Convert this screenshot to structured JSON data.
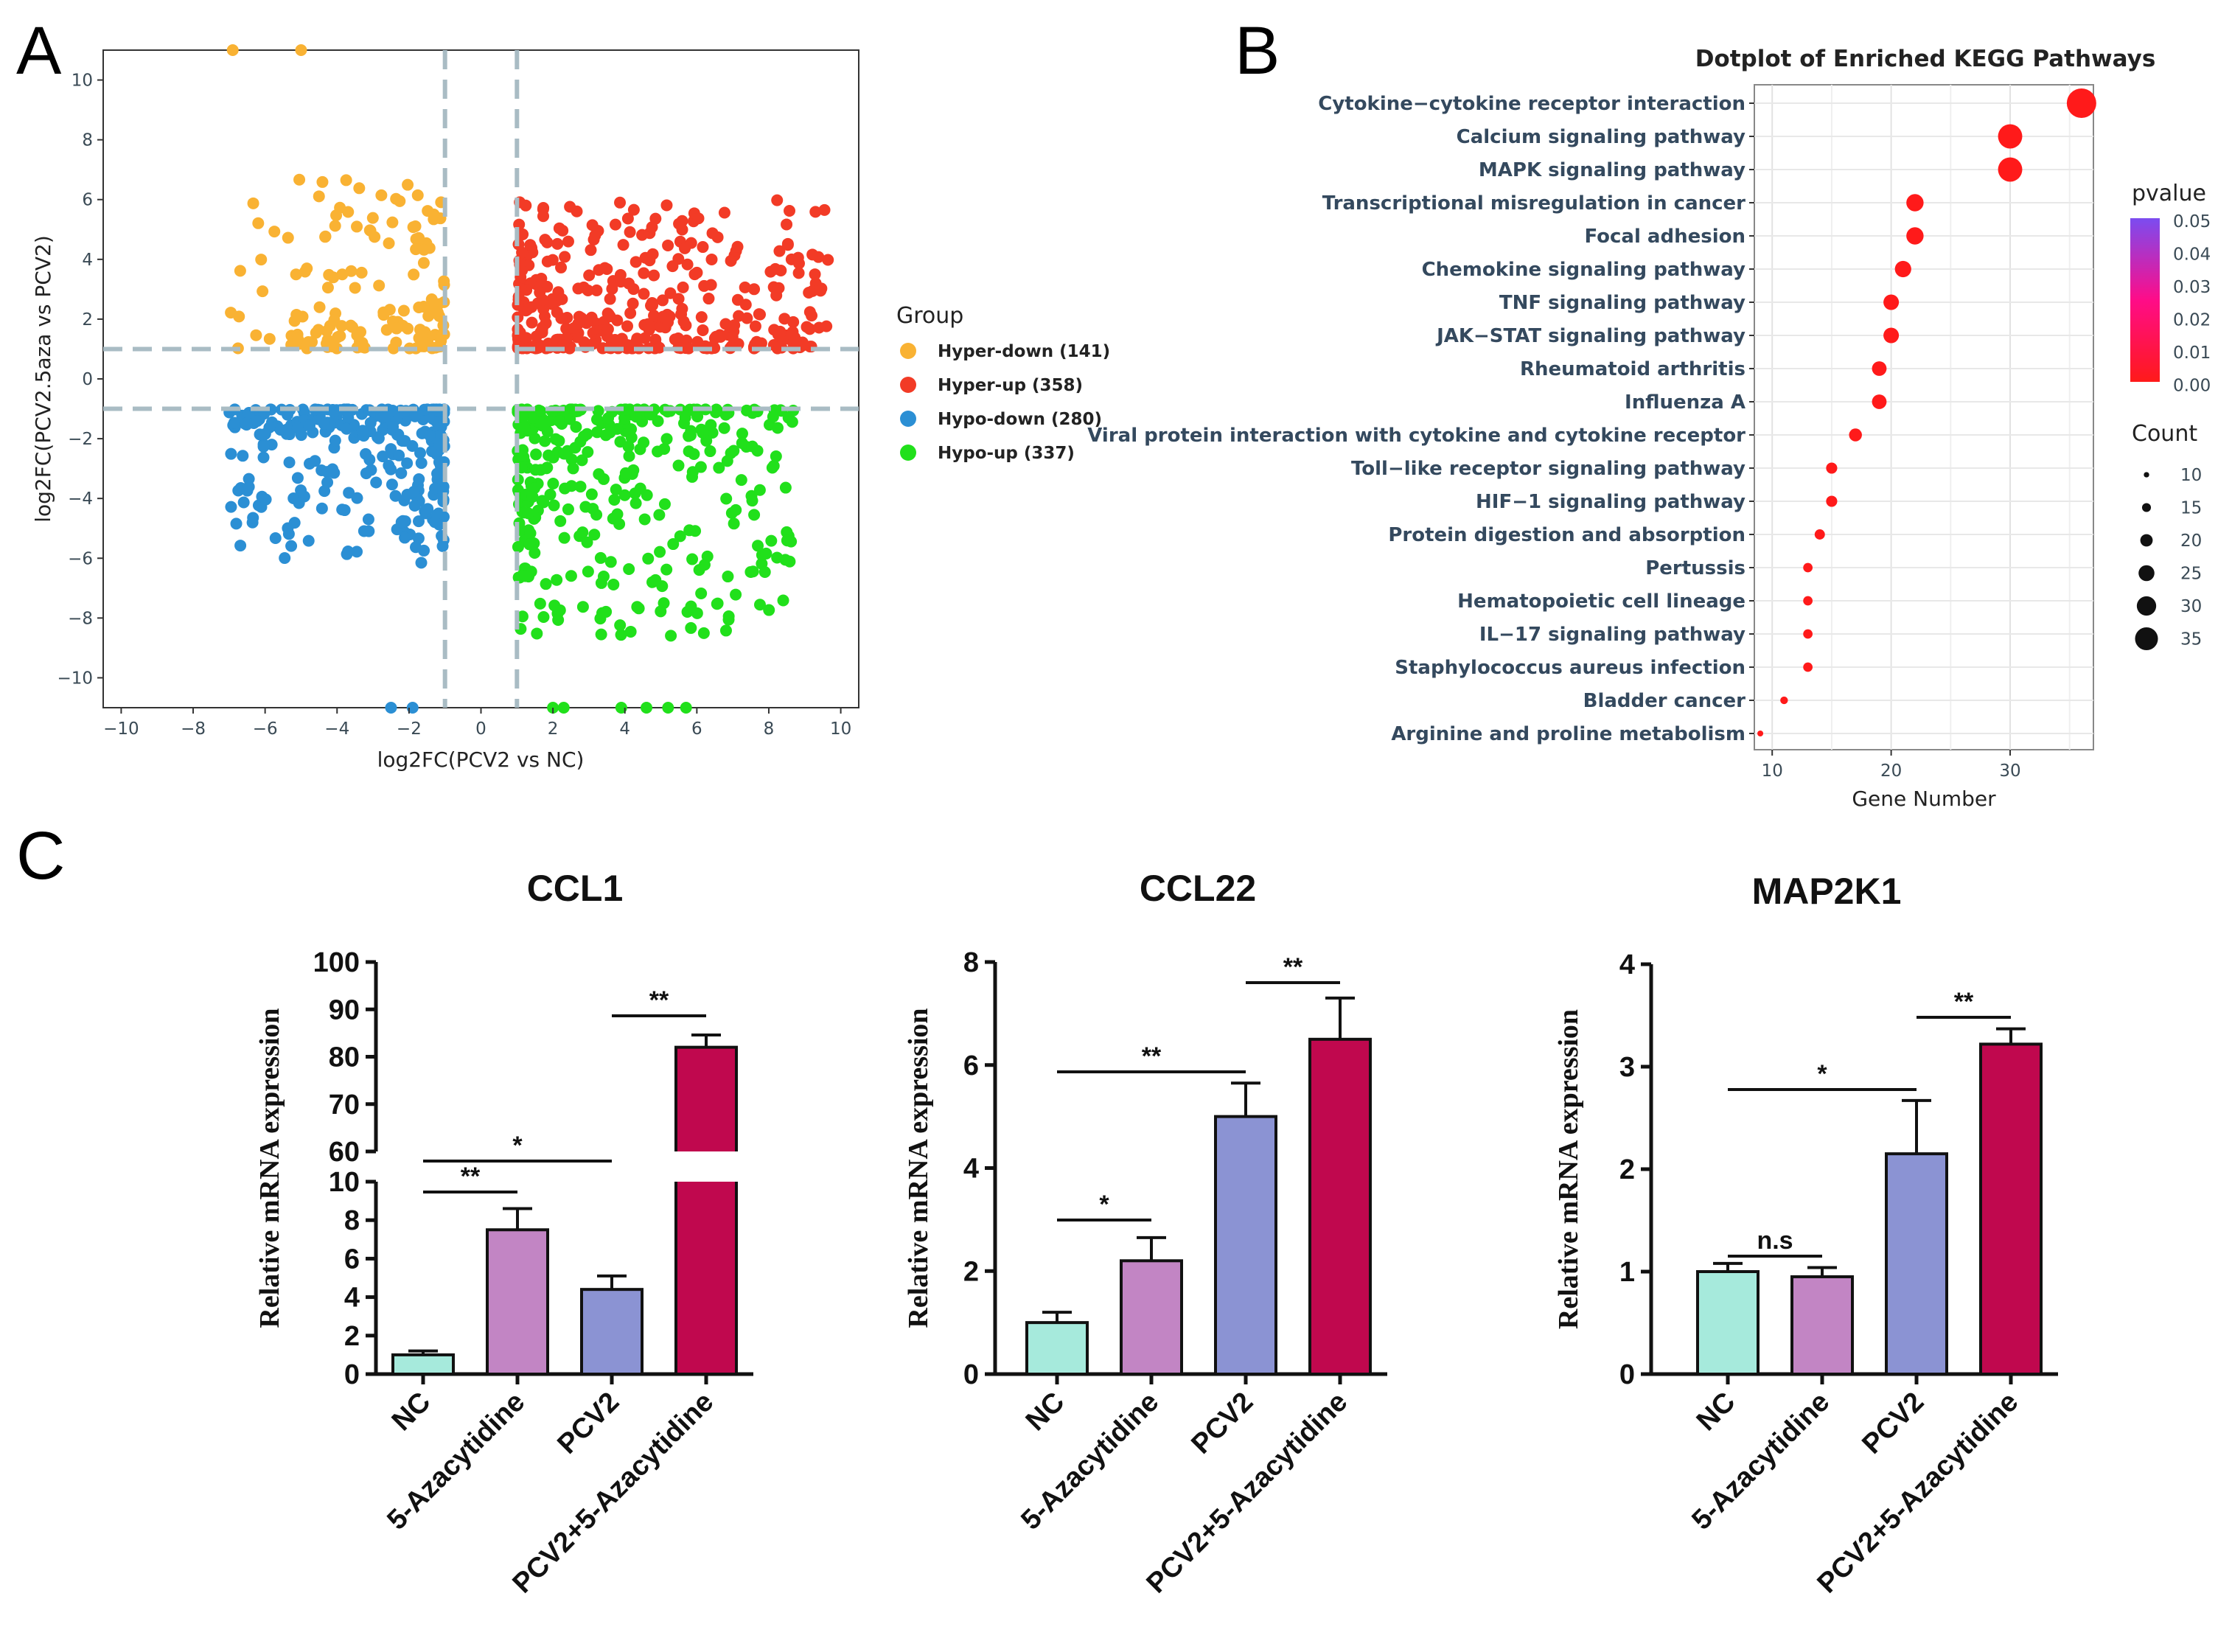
{
  "panels": {
    "a": "A",
    "b": "B",
    "c": "C"
  },
  "chart_data": [
    {
      "type": "scatter",
      "panel": "A",
      "title": "",
      "xlabel": "log2FC(PCV2 vs NC)",
      "ylabel": "log2FC(PCV2.5aza vs PCV2)",
      "xlim": [
        -10.5,
        10.5
      ],
      "ylim": [
        -11,
        11
      ],
      "xticks": [
        "−10",
        "−8",
        "−6",
        "−4",
        "−2",
        "0",
        "2",
        "4",
        "6",
        "8",
        "10"
      ],
      "yticks": [
        "10",
        "8",
        "6",
        "4",
        "2",
        "0",
        "−2",
        "−4",
        "−6",
        "−8",
        "−10"
      ],
      "thresholds": {
        "x": [
          -1,
          1
        ],
        "y": [
          -1,
          1
        ]
      },
      "legend_title": "Group",
      "series": [
        {
          "name": "Hyper-down (141)",
          "color": "#f9b233",
          "quadrant": "x<-1, y>1",
          "count": 141
        },
        {
          "name": "Hyper-up (358)",
          "color": "#f23b26",
          "quadrant": "x>1, y>1",
          "count": 358
        },
        {
          "name": "Hypo-down (280)",
          "color": "#2b8fd4",
          "quadrant": "x<-1, y<-1",
          "count": 280
        },
        {
          "name": "Hypo-up (337)",
          "color": "#21e01b",
          "quadrant": "x>1, y<-1",
          "count": 337
        }
      ]
    },
    {
      "type": "scatter",
      "panel": "B",
      "title": "Dotplot of Enriched KEGG Pathways",
      "xlabel": "Gene Number",
      "xlim": [
        8.5,
        37
      ],
      "xticks": [
        "10",
        "20",
        "30"
      ],
      "categories": [
        "Cytokine−cytokine receptor interaction",
        "Calcium signaling pathway",
        "MAPK signaling pathway",
        "Transcriptional misregulation in cancer",
        "Focal adhesion",
        "Chemokine signaling pathway",
        "TNF signaling pathway",
        "JAK−STAT signaling pathway",
        "Rheumatoid arthritis",
        "Influenza A",
        "Viral protein interaction with cytokine and cytokine receptor",
        "Toll−like receptor signaling pathway",
        "HIF−1 signaling pathway",
        "Protein digestion and absorption",
        "Pertussis",
        "Hematopoietic cell lineage",
        "IL−17 signaling pathway",
        "Staphylococcus aureus infection",
        "Bladder cancer",
        "Arginine and proline metabolism"
      ],
      "values": [
        36,
        30,
        30,
        22,
        22,
        21,
        20,
        20,
        19,
        19,
        17,
        15,
        15,
        14,
        13,
        13,
        13,
        13,
        11,
        9
      ],
      "legend": {
        "pvalue_title": "pvalue",
        "pvalue_ticks": [
          "0.05",
          "0.04",
          "0.03",
          "0.02",
          "0.01",
          "0.00"
        ],
        "count_title": "Count",
        "count_ticks": [
          "10",
          "15",
          "20",
          "25",
          "30",
          "35"
        ]
      },
      "colors": {
        "low": "#ff1a1a",
        "mid": "#ff0c88",
        "high": "#7b4cf0"
      }
    },
    {
      "type": "bar",
      "panel": "C",
      "title": "CCL1",
      "ylabel": "Relative mRNA expression",
      "categories": [
        "NC",
        "5-Azacytidine",
        "PCV2",
        "PCV2+5-Azacytidine"
      ],
      "values": [
        1.0,
        7.5,
        4.4,
        82
      ],
      "errors": [
        0.2,
        1.1,
        0.7,
        2.6
      ],
      "colors": [
        "#a6eadc",
        "#c285c4",
        "#8b93d3",
        "#c0084e"
      ],
      "ylim_lower": [
        0,
        10
      ],
      "ylim_upper": [
        60,
        100
      ],
      "yticks_lower": [
        "0",
        "2",
        "4",
        "6",
        "8",
        "10"
      ],
      "yticks_upper": [
        "60",
        "70",
        "80",
        "90",
        "100"
      ],
      "significance": [
        {
          "from": 0,
          "to": 1,
          "label": "**"
        },
        {
          "from": 0,
          "to": 2,
          "label": "*"
        },
        {
          "from": 2,
          "to": 3,
          "label": "**"
        }
      ]
    },
    {
      "type": "bar",
      "panel": "C",
      "title": "CCL22",
      "ylabel": "Relative mRNA expression",
      "categories": [
        "NC",
        "5-Azacytidine",
        "PCV2",
        "PCV2+5-Azacytidine"
      ],
      "values": [
        1.0,
        2.2,
        5.0,
        6.5
      ],
      "errors": [
        0.2,
        0.45,
        0.65,
        0.8
      ],
      "colors": [
        "#a6eadc",
        "#c285c4",
        "#8b93d3",
        "#c0084e"
      ],
      "ylim": [
        0,
        8
      ],
      "yticks": [
        "0",
        "2",
        "4",
        "6",
        "8"
      ],
      "significance": [
        {
          "from": 0,
          "to": 1,
          "label": "*"
        },
        {
          "from": 0,
          "to": 2,
          "label": "**"
        },
        {
          "from": 2,
          "to": 3,
          "label": "**"
        }
      ]
    },
    {
      "type": "bar",
      "panel": "C",
      "title": "MAP2K1",
      "ylabel": "Relative mRNA expression",
      "categories": [
        "NC",
        "5-Azacytidine",
        "PCV2",
        "PCV2+5-Azacytidine"
      ],
      "values": [
        1.0,
        0.95,
        2.15,
        3.22
      ],
      "errors": [
        0.08,
        0.09,
        0.52,
        0.15
      ],
      "colors": [
        "#a6eadc",
        "#c285c4",
        "#8b93d3",
        "#c0084e"
      ],
      "ylim": [
        0,
        4
      ],
      "yticks": [
        "0",
        "1",
        "2",
        "3",
        "4"
      ],
      "significance": [
        {
          "from": 0,
          "to": 1,
          "label": "n.s"
        },
        {
          "from": 0,
          "to": 2,
          "label": "*"
        },
        {
          "from": 2,
          "to": 3,
          "label": "**"
        }
      ]
    }
  ]
}
